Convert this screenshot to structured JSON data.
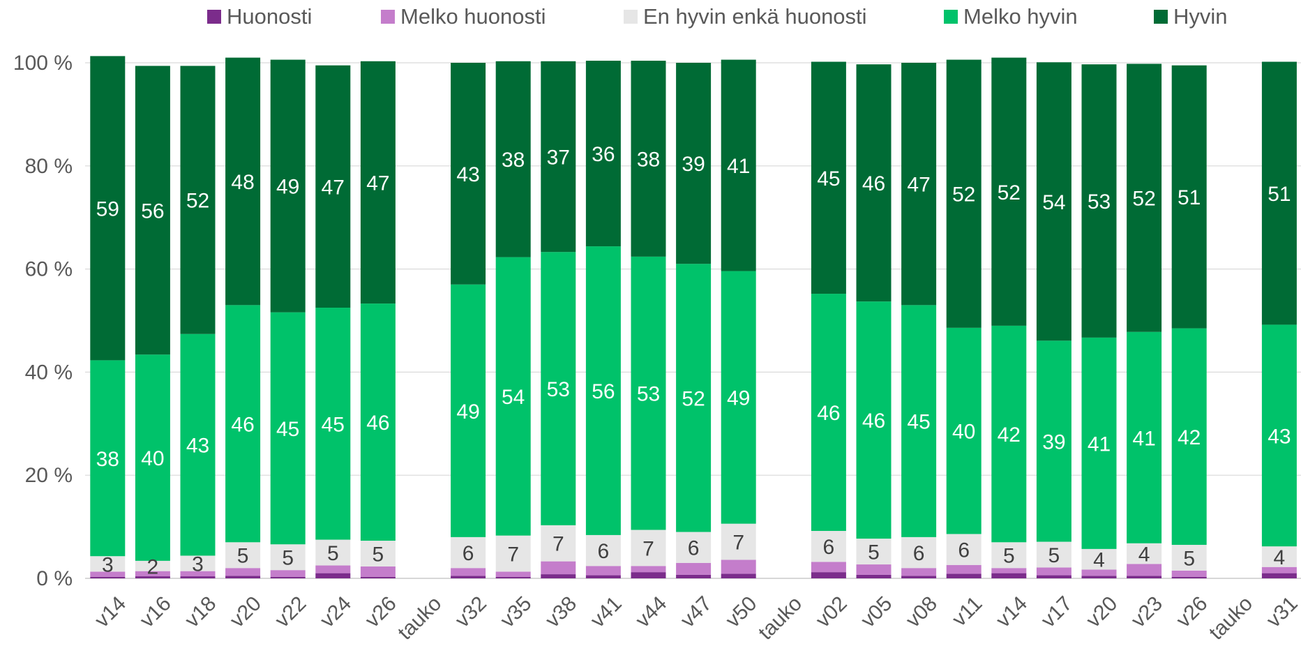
{
  "legend": [
    {
      "name": "Huonosti",
      "color": "#7B2C8B"
    },
    {
      "name": "Melko huonosti",
      "color": "#C47DCB"
    },
    {
      "name": "En hyvin enkä huonosti",
      "color": "#E6E6E6"
    },
    {
      "name": "Melko hyvin",
      "color": "#00C26A"
    },
    {
      "name": "Hyvin",
      "color": "#006B35"
    }
  ],
  "chart_data": {
    "type": "bar",
    "stacked": true,
    "percent_stacked": true,
    "y_ticks": [
      "0 %",
      "20 %",
      "40 %",
      "60 %",
      "80 %",
      "100 %"
    ],
    "ylim": [
      0,
      100
    ],
    "grid": true,
    "legend_position": "top",
    "categories": [
      "v14",
      "v16",
      "v18",
      "v20",
      "v22",
      "v24",
      "v26",
      "tauko",
      "v32",
      "v35",
      "v38",
      "v41",
      "v44",
      "v47",
      "v50",
      "tauko",
      "v02",
      "v05",
      "v08",
      "v11",
      "v14",
      "v17",
      "v20",
      "v23",
      "v26",
      "tauko",
      "v31"
    ],
    "series": [
      {
        "name": "Huonosti",
        "color": "#7B2C8B",
        "values": [
          0.3,
          0.4,
          0.4,
          0.5,
          0.3,
          1.0,
          0.3,
          null,
          0.5,
          0.3,
          0.8,
          0.6,
          1.2,
          0.7,
          0.9,
          null,
          1.2,
          0.7,
          0.5,
          0.9,
          1.0,
          0.6,
          0.5,
          0.5,
          0.3,
          null,
          1.0
        ]
      },
      {
        "name": "Melko huonosti",
        "color": "#C47DCB",
        "values": [
          1,
          1,
          1,
          1.5,
          1.3,
          1.5,
          2,
          null,
          1.5,
          1,
          2.5,
          1.8,
          1.2,
          2.3,
          2.7,
          null,
          2,
          2,
          1.5,
          1.7,
          1,
          1.5,
          1.2,
          2.3,
          1.2,
          null,
          1.2
        ]
      },
      {
        "name": "En hyvin enkä huonosti",
        "color": "#E6E6E6",
        "values": [
          3,
          2,
          3,
          5,
          5,
          5,
          5,
          null,
          6,
          7,
          7,
          6,
          7,
          6,
          7,
          null,
          6,
          5,
          6,
          6,
          5,
          5,
          4,
          4,
          5,
          null,
          4
        ]
      },
      {
        "name": "Melko hyvin",
        "color": "#00C26A",
        "values": [
          38,
          40,
          43,
          46,
          45,
          45,
          46,
          null,
          49,
          54,
          53,
          56,
          53,
          52,
          49,
          null,
          46,
          46,
          45,
          40,
          42,
          39,
          41,
          41,
          42,
          null,
          43
        ]
      },
      {
        "name": "Hyvin",
        "color": "#006B35",
        "values": [
          59,
          56,
          52,
          48,
          49,
          47,
          47,
          null,
          43,
          38,
          37,
          36,
          38,
          39,
          41,
          null,
          45,
          46,
          47,
          52,
          52,
          54,
          53,
          52,
          51,
          null,
          51
        ]
      }
    ],
    "labeled_series": [
      "En hyvin enkä huonosti",
      "Melko hyvin",
      "Hyvin"
    ],
    "label_colors": {
      "En hyvin enkä huonosti": "#404040",
      "Melko hyvin": "#ffffff",
      "Hyvin": "#ffffff"
    }
  }
}
